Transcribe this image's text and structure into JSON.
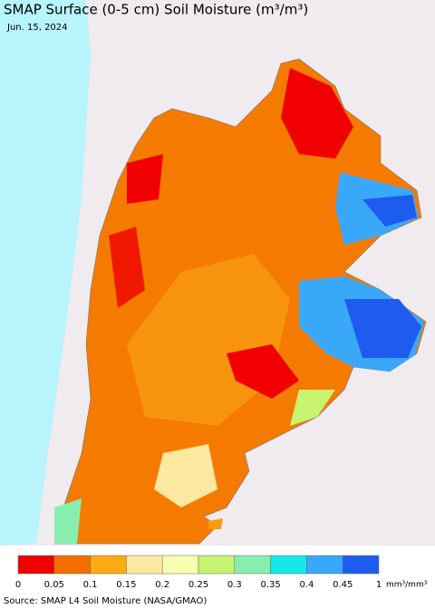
{
  "title": "SMAP Surface (0-5 cm) Soil Moisture (m³/m³)",
  "date": "Jun. 15, 2024",
  "colorbar": {
    "ticks": [
      0,
      0.05,
      0.1,
      0.15,
      0.2,
      0.25,
      0.3,
      0.35,
      0.4,
      0.45,
      1
    ],
    "unit": "mm³/mm³",
    "colors": [
      "#f00000",
      "#f46e00",
      "#fbaa10",
      "#fde8a0",
      "#f8ffb0",
      "#c6f470",
      "#88eeb0",
      "#14e8e8",
      "#3aa8f8",
      "#1e5cf0",
      "#0000d8"
    ]
  },
  "source": "Source: SMAP L4 Soil Moisture (NASA/GMAO)"
}
